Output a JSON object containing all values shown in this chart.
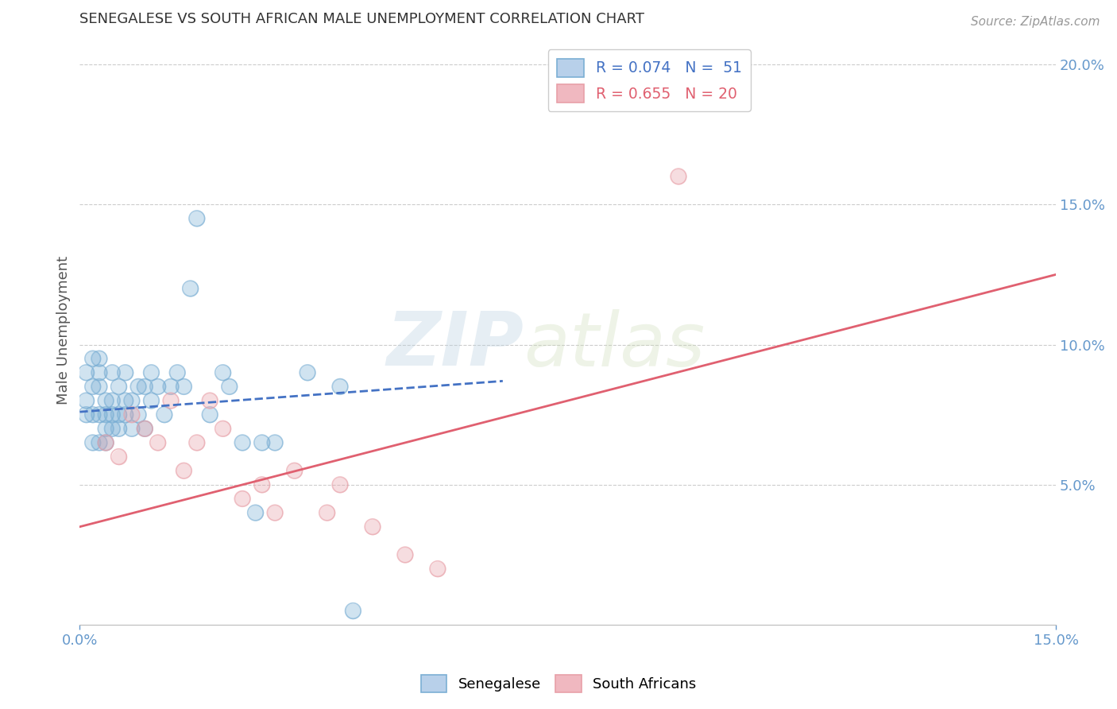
{
  "title": "SENEGALESE VS SOUTH AFRICAN MALE UNEMPLOYMENT CORRELATION CHART",
  "source": "Source: ZipAtlas.com",
  "ylabel": "Male Unemployment",
  "xlim": [
    0.0,
    0.15
  ],
  "ylim": [
    0.0,
    0.21
  ],
  "watermark_parts": [
    "ZIP",
    "atlas"
  ],
  "senegalese_scatter": {
    "x": [
      0.001,
      0.001,
      0.001,
      0.002,
      0.002,
      0.002,
      0.002,
      0.003,
      0.003,
      0.003,
      0.003,
      0.003,
      0.004,
      0.004,
      0.004,
      0.004,
      0.005,
      0.005,
      0.005,
      0.005,
      0.006,
      0.006,
      0.006,
      0.007,
      0.007,
      0.007,
      0.008,
      0.008,
      0.009,
      0.009,
      0.01,
      0.01,
      0.011,
      0.011,
      0.012,
      0.013,
      0.014,
      0.015,
      0.016,
      0.017,
      0.018,
      0.02,
      0.022,
      0.023,
      0.025,
      0.027,
      0.028,
      0.03,
      0.035,
      0.04,
      0.042
    ],
    "y": [
      0.075,
      0.08,
      0.09,
      0.065,
      0.075,
      0.085,
      0.095,
      0.065,
      0.075,
      0.085,
      0.09,
      0.095,
      0.065,
      0.07,
      0.075,
      0.08,
      0.07,
      0.075,
      0.08,
      0.09,
      0.07,
      0.075,
      0.085,
      0.075,
      0.08,
      0.09,
      0.07,
      0.08,
      0.075,
      0.085,
      0.07,
      0.085,
      0.08,
      0.09,
      0.085,
      0.075,
      0.085,
      0.09,
      0.085,
      0.12,
      0.145,
      0.075,
      0.09,
      0.085,
      0.065,
      0.04,
      0.065,
      0.065,
      0.09,
      0.085,
      0.005
    ],
    "color": "#7bafd4"
  },
  "south_african_scatter": {
    "x": [
      0.004,
      0.006,
      0.008,
      0.01,
      0.012,
      0.014,
      0.016,
      0.018,
      0.02,
      0.022,
      0.025,
      0.028,
      0.03,
      0.033,
      0.038,
      0.04,
      0.045,
      0.05,
      0.055,
      0.092
    ],
    "y": [
      0.065,
      0.06,
      0.075,
      0.07,
      0.065,
      0.08,
      0.055,
      0.065,
      0.08,
      0.07,
      0.045,
      0.05,
      0.04,
      0.055,
      0.04,
      0.05,
      0.035,
      0.025,
      0.02,
      0.16
    ],
    "color": "#e8a0a8"
  },
  "senegalese_trend": {
    "x_start": 0.0,
    "x_end": 0.065,
    "y_start": 0.076,
    "y_end": 0.087,
    "color": "#4472c4",
    "linewidth": 2.0
  },
  "south_african_trend": {
    "x_start": 0.0,
    "x_end": 0.15,
    "y_start": 0.035,
    "y_end": 0.125,
    "color": "#e06070",
    "linewidth": 2.0
  },
  "bg_color": "#ffffff",
  "grid_color": "#cccccc",
  "title_color": "#333333",
  "axis_color": "#6699cc",
  "tick_color": "#6699cc"
}
